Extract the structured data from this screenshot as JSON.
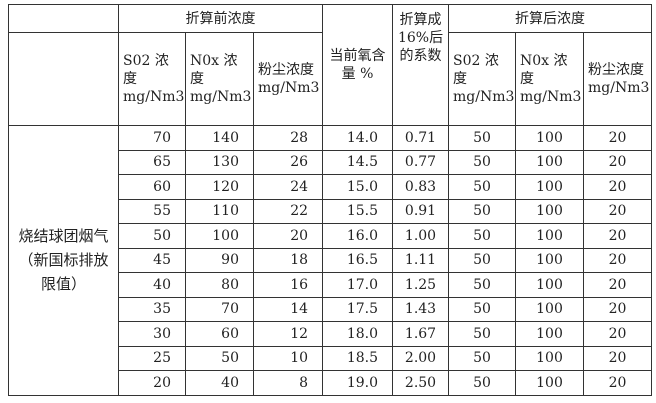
{
  "header": {
    "before_group": "折算前浓度",
    "after_group": "折算后浓度",
    "columns": [
      "S02 浓度 mg/Nm3",
      "N0x 浓度 mg/Nm3",
      "粉尘浓度 mg/Nm3",
      "当前氧含量 %",
      "折算成16%后的系数",
      "S02 浓度 mg/Nm3",
      "N0x 浓度 mg/Nm3",
      "粉尘浓度 mg/Nm3"
    ]
  },
  "category": "烧结球团烟气（新国标排放限值）",
  "rows": [
    [
      "70",
      "140",
      "28",
      "14.0",
      "0.71",
      "50",
      "100",
      "20"
    ],
    [
      "65",
      "130",
      "26",
      "14.5",
      "0.77",
      "50",
      "100",
      "20"
    ],
    [
      "60",
      "120",
      "24",
      "15.0",
      "0.83",
      "50",
      "100",
      "20"
    ],
    [
      "55",
      "110",
      "22",
      "15.5",
      "0.91",
      "50",
      "100",
      "20"
    ],
    [
      "50",
      "100",
      "20",
      "16.0",
      "1.00",
      "50",
      "100",
      "20"
    ],
    [
      "45",
      "90",
      "18",
      "16.5",
      "1.11",
      "50",
      "100",
      "20"
    ],
    [
      "40",
      "80",
      "16",
      "17.0",
      "1.25",
      "50",
      "100",
      "20"
    ],
    [
      "35",
      "70",
      "14",
      "17.5",
      "1.43",
      "50",
      "100",
      "20"
    ],
    [
      "30",
      "60",
      "12",
      "18.0",
      "1.67",
      "50",
      "100",
      "20"
    ],
    [
      "25",
      "50",
      "10",
      "18.5",
      "2.00",
      "50",
      "100",
      "20"
    ],
    [
      "20",
      "40",
      "8",
      "19.0",
      "2.50",
      "50",
      "100",
      "20"
    ]
  ]
}
